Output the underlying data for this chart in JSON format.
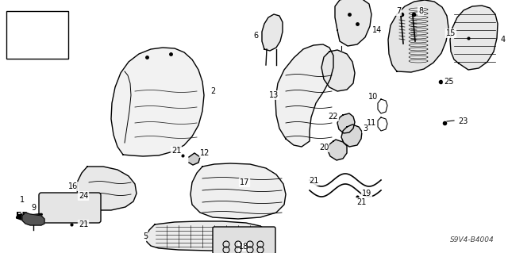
{
  "bg_color": "#ffffff",
  "diagram_code": "S9V4-B4004",
  "figsize": [
    6.4,
    3.19
  ],
  "dpi": 100
}
